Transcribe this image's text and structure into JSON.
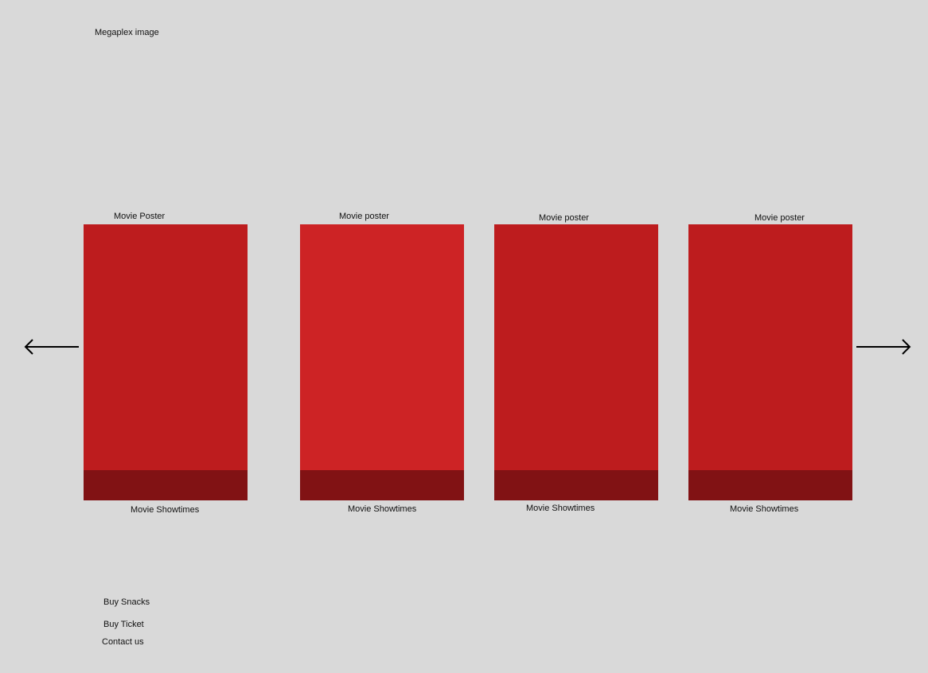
{
  "header": {
    "hero_image_label": "Megaplex image"
  },
  "carousel": {
    "prev_icon": "arrow-left-icon",
    "next_icon": "arrow-right-icon",
    "movies": [
      {
        "poster_label": "Movie Poster",
        "showtimes_label": "Movie Showtimes",
        "poster_color": "#bd1c1e",
        "bar_color": "#811214"
      },
      {
        "poster_label": "Movie poster",
        "showtimes_label": "Movie Showtimes",
        "poster_color": "#cd2325",
        "bar_color": "#811214"
      },
      {
        "poster_label": "Movie poster",
        "showtimes_label": "Movie Showtimes",
        "poster_color": "#bd1c1e",
        "bar_color": "#811214"
      },
      {
        "poster_label": "Movie poster",
        "showtimes_label": "Movie Showtimes",
        "poster_color": "#bd1c1e",
        "bar_color": "#811214"
      }
    ]
  },
  "footer": {
    "links": [
      "Buy Snacks",
      "Buy Ticket",
      "Contact us"
    ]
  }
}
